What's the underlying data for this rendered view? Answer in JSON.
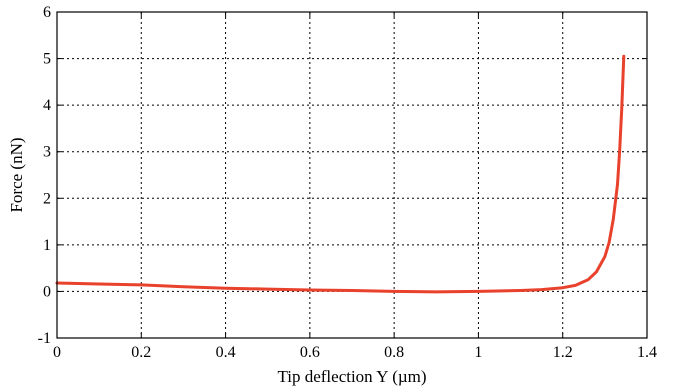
{
  "chart_data": {
    "type": "line",
    "title": "",
    "xlabel": "Tip deflection Y (µm)",
    "ylabel": "Force (nN)",
    "xlim": [
      0,
      1.4
    ],
    "ylim": [
      -1,
      6
    ],
    "x_ticks": [
      "0",
      "0.2",
      "0.4",
      "0.6",
      "0.8",
      "1",
      "1.2",
      "1.4"
    ],
    "y_ticks": [
      "-1",
      "0",
      "1",
      "2",
      "3",
      "4",
      "5",
      "6"
    ],
    "grid": true,
    "grid_style": "dotted",
    "legend": "none",
    "series": [
      {
        "color": "#e8412c",
        "x": [
          0,
          0.1,
          0.2,
          0.3,
          0.4,
          0.5,
          0.6,
          0.7,
          0.8,
          0.9,
          1.0,
          1.1,
          1.15,
          1.2,
          1.23,
          1.26,
          1.28,
          1.3,
          1.31,
          1.32,
          1.33,
          1.335,
          1.34,
          1.345
        ],
        "y": [
          0.18,
          0.16,
          0.14,
          0.1,
          0.07,
          0.05,
          0.03,
          0.02,
          0.0,
          -0.01,
          0.0,
          0.02,
          0.04,
          0.08,
          0.13,
          0.25,
          0.42,
          0.75,
          1.05,
          1.55,
          2.3,
          3.0,
          3.9,
          5.05
        ]
      }
    ]
  }
}
